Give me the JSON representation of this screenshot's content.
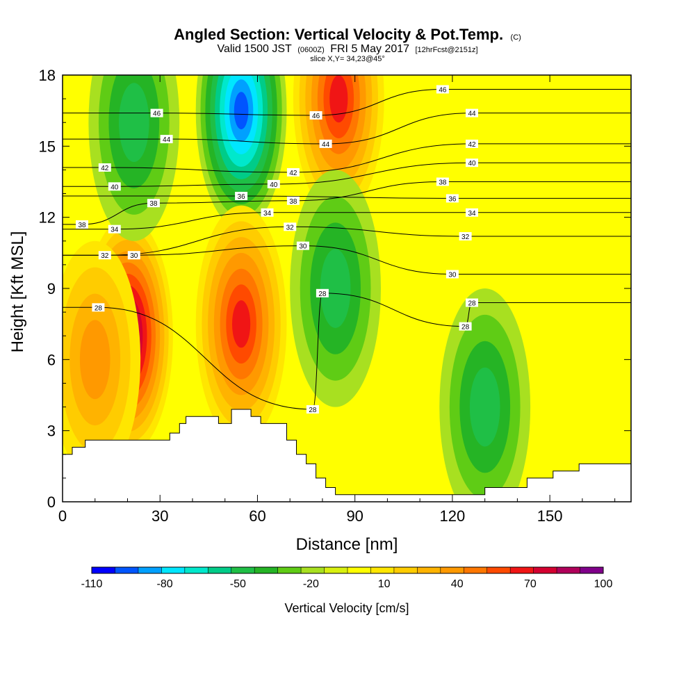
{
  "chart_data": {
    "type": "heatmap",
    "title": "Angled Section: Vertical Velocity & Pot.Temp.",
    "title_mark": "(C)",
    "subtitle_parts": [
      "Valid 1500 JST",
      "(0600Z)",
      "FRI 5 May 2017",
      "[12hrFcst@2151z]"
    ],
    "slice_text": "slice X,Y= 34,23@45°",
    "xlabel": "Distance [nm]",
    "ylabel": "Height [Kft MSL]",
    "xlim": [
      0,
      175
    ],
    "ylim": [
      0,
      18
    ],
    "x_ticks": [
      "0",
      "30",
      "60",
      "90",
      "120",
      "150"
    ],
    "y_ticks": [
      "0",
      "3",
      "6",
      "9",
      "12",
      "15",
      "18"
    ],
    "colorbar": {
      "label": "Vertical Velocity [cm/s]",
      "min": -110,
      "max": 100,
      "step": 10,
      "tick_labels": [
        "-110",
        "-80",
        "-50",
        "-20",
        "10",
        "40",
        "70",
        "100"
      ],
      "colors": [
        "#0000ff",
        "#0055ff",
        "#00a0ff",
        "#00e6ff",
        "#00e8cc",
        "#00cc88",
        "#1fbf46",
        "#25b425",
        "#5fcc15",
        "#a8e020",
        "#d8f010",
        "#ffff00",
        "#ffe600",
        "#ffcc00",
        "#ffb300",
        "#ff9900",
        "#ff7700",
        "#ff4a00",
        "#f01515",
        "#d40030",
        "#b0005a",
        "#80008a"
      ]
    },
    "vertical_velocity_features": [
      {
        "x": 20,
        "y": 7,
        "peak": 100
      },
      {
        "x": 22,
        "y": 16,
        "peak": -45
      },
      {
        "x": 55,
        "y": 16.5,
        "peak": -90
      },
      {
        "x": 55,
        "y": 7.5,
        "peak": 70
      },
      {
        "x": 85,
        "y": 17,
        "peak": 70
      },
      {
        "x": 84,
        "y": 9,
        "peak": -40
      },
      {
        "x": 10,
        "y": 6,
        "peak": 45
      },
      {
        "x": 130,
        "y": 4,
        "peak": -40
      }
    ],
    "terrain_top_kft": [
      [
        0,
        2
      ],
      [
        3,
        2
      ],
      [
        3,
        2.3
      ],
      [
        7,
        2.3
      ],
      [
        7,
        2.6
      ],
      [
        33,
        2.6
      ],
      [
        33,
        2.9
      ],
      [
        36,
        2.9
      ],
      [
        36,
        3.3
      ],
      [
        38,
        3.3
      ],
      [
        38,
        3.6
      ],
      [
        48,
        3.6
      ],
      [
        48,
        3.3
      ],
      [
        52,
        3.3
      ],
      [
        52,
        3.9
      ],
      [
        58,
        3.9
      ],
      [
        58,
        3.6
      ],
      [
        61,
        3.6
      ],
      [
        61,
        3.3
      ],
      [
        69,
        3.3
      ],
      [
        69,
        2.6
      ],
      [
        72,
        2.6
      ],
      [
        72,
        2
      ],
      [
        75,
        2
      ],
      [
        75,
        1.6
      ],
      [
        78,
        1.6
      ],
      [
        78,
        1
      ],
      [
        81,
        1
      ],
      [
        81,
        0.6
      ],
      [
        84,
        0.6
      ],
      [
        84,
        0.3
      ],
      [
        130,
        0.3
      ],
      [
        130,
        0.6
      ],
      [
        143,
        0.6
      ],
      [
        143,
        1
      ],
      [
        151,
        1
      ],
      [
        151,
        1.3
      ],
      [
        159,
        1.3
      ],
      [
        159,
        1.6
      ],
      [
        175,
        1.6
      ]
    ],
    "theta_contour_labels": [
      {
        "text": "46",
        "x": 29,
        "y": 16.4
      },
      {
        "text": "44",
        "x": 32,
        "y": 15.3
      },
      {
        "text": "42",
        "x": 13,
        "y": 14.1
      },
      {
        "text": "40",
        "x": 16,
        "y": 13.3
      },
      {
        "text": "38",
        "x": 28,
        "y": 12.6
      },
      {
        "text": "38",
        "x": 6,
        "y": 11.7
      },
      {
        "text": "34",
        "x": 16,
        "y": 11.5
      },
      {
        "text": "32",
        "x": 13,
        "y": 10.4
      },
      {
        "text": "30",
        "x": 22,
        "y": 10.4
      },
      {
        "text": "28",
        "x": 11,
        "y": 8.2
      },
      {
        "text": "46",
        "x": 78,
        "y": 16.3
      },
      {
        "text": "44",
        "x": 81,
        "y": 15.1
      },
      {
        "text": "42",
        "x": 71,
        "y": 13.9
      },
      {
        "text": "40",
        "x": 65,
        "y": 13.4
      },
      {
        "text": "38",
        "x": 71,
        "y": 12.7
      },
      {
        "text": "36",
        "x": 55,
        "y": 12.9
      },
      {
        "text": "34",
        "x": 63,
        "y": 12.2
      },
      {
        "text": "32",
        "x": 70,
        "y": 11.6
      },
      {
        "text": "30",
        "x": 74,
        "y": 10.8
      },
      {
        "text": "28",
        "x": 80,
        "y": 8.8
      },
      {
        "text": "28",
        "x": 77,
        "y": 3.9
      },
      {
        "text": "46",
        "x": 117,
        "y": 17.4
      },
      {
        "text": "44",
        "x": 126,
        "y": 16.4
      },
      {
        "text": "42",
        "x": 126,
        "y": 15.1
      },
      {
        "text": "40",
        "x": 126,
        "y": 14.3
      },
      {
        "text": "38",
        "x": 117,
        "y": 13.5
      },
      {
        "text": "36",
        "x": 120,
        "y": 12.8
      },
      {
        "text": "34",
        "x": 126,
        "y": 12.2
      },
      {
        "text": "32",
        "x": 124,
        "y": 11.2
      },
      {
        "text": "30",
        "x": 120,
        "y": 9.6
      },
      {
        "text": "28",
        "x": 126,
        "y": 8.4
      },
      {
        "text": "28",
        "x": 124,
        "y": 7.4
      }
    ]
  }
}
